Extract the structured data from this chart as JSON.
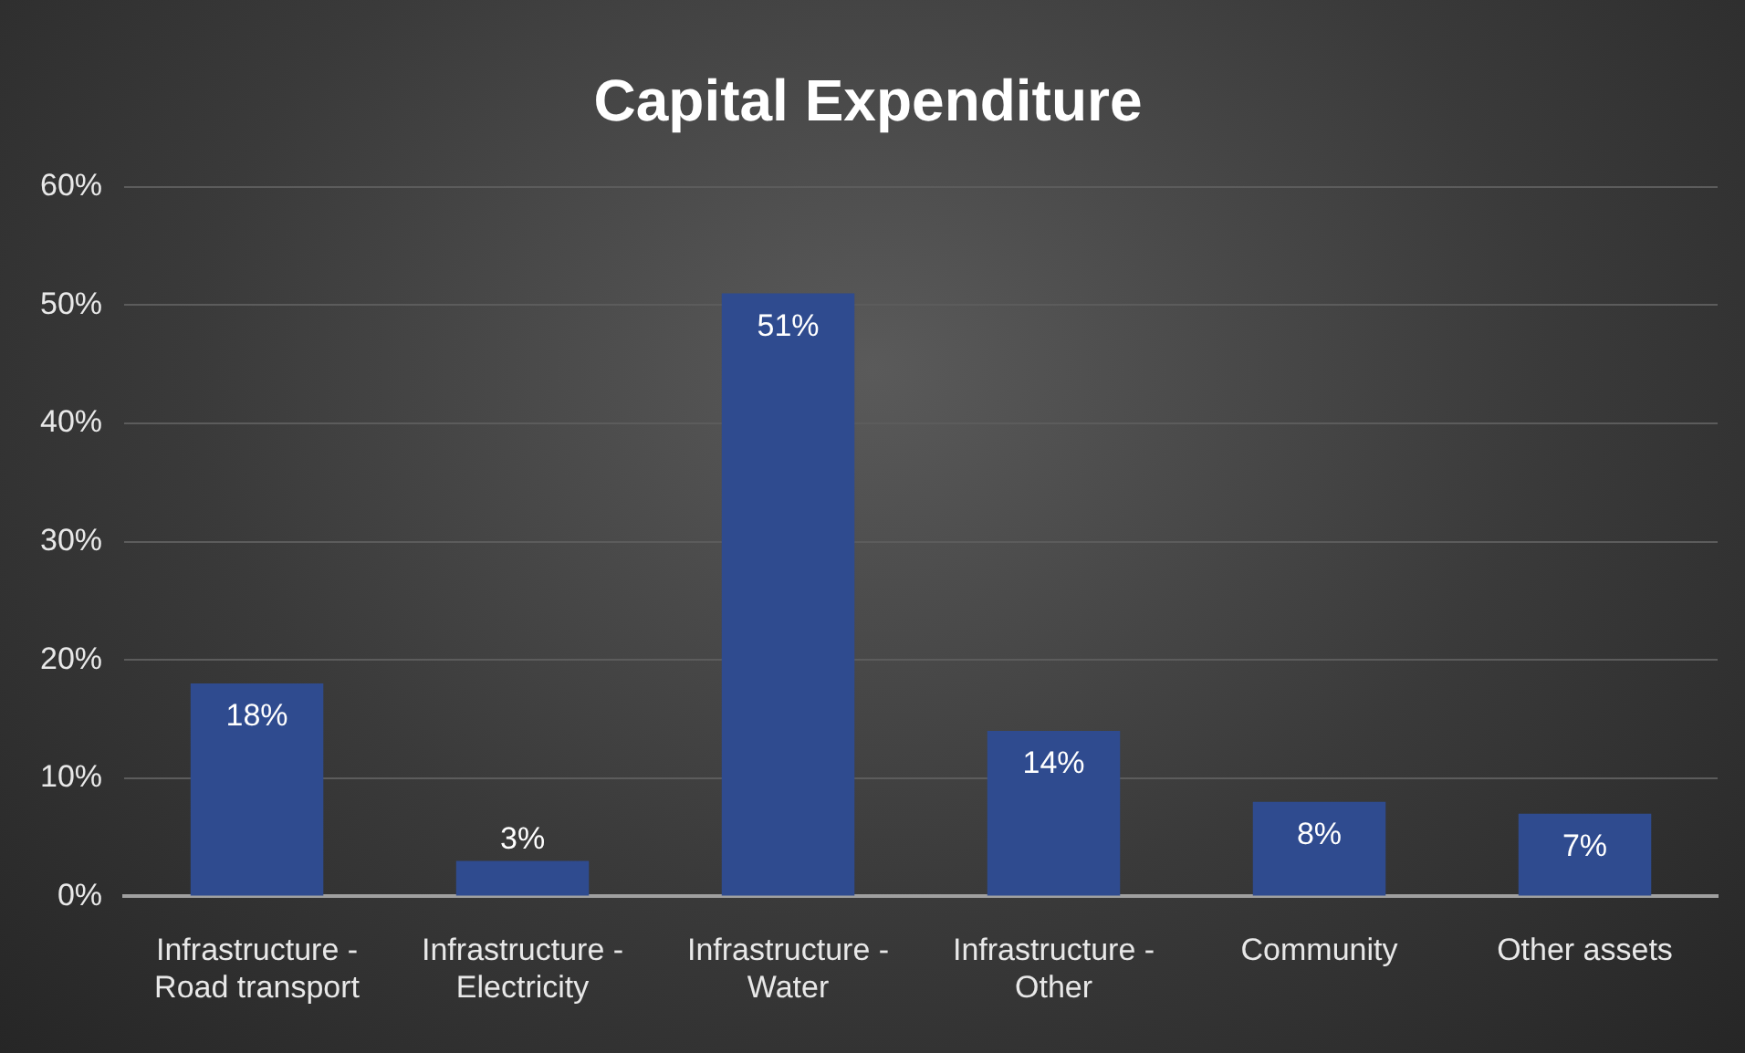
{
  "chart_data": {
    "type": "bar",
    "title": "Capital Expenditure",
    "categories": [
      "Infrastructure - Road transport",
      "Infrastructure - Electricity",
      "Infrastructure - Water",
      "Infrastructure - Other",
      "Community",
      "Other assets"
    ],
    "values": [
      18,
      3,
      51,
      14,
      8,
      7
    ],
    "value_labels": [
      "18%",
      "3%",
      "51%",
      "14%",
      "8%",
      "7%"
    ],
    "color": "#2f4b8f",
    "ylim": [
      0,
      60
    ],
    "yticks": [
      {
        "value": 0,
        "label": "0%"
      },
      {
        "value": 10,
        "label": "10%"
      },
      {
        "value": 20,
        "label": "20%"
      },
      {
        "value": 30,
        "label": "30%"
      },
      {
        "value": 40,
        "label": "40%"
      },
      {
        "value": 50,
        "label": "50%"
      },
      {
        "value": 60,
        "label": "60%"
      }
    ],
    "grid": "y",
    "legend": false
  }
}
